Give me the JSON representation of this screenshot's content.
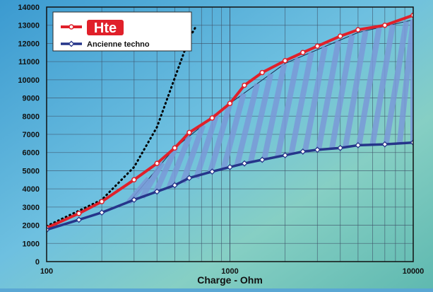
{
  "chart_data": {
    "type": "line",
    "x_scale": "log",
    "xlim": [
      100,
      10000
    ],
    "ylim": [
      0,
      14000
    ],
    "xlabel": "Charge - Ohm",
    "ylabel": "",
    "y_ticks": [
      0,
      1000,
      2000,
      3000,
      4000,
      5000,
      6000,
      7000,
      8000,
      9000,
      10000,
      11000,
      12000,
      13000,
      14000
    ],
    "x_ticks": [
      100,
      1000,
      10000
    ],
    "grid": true,
    "legend_position": "top-left",
    "series": [
      {
        "name": "Hte",
        "color": "#e0202a",
        "marker": "circle",
        "points": [
          [
            100,
            1850
          ],
          [
            150,
            2650
          ],
          [
            200,
            3300
          ],
          [
            300,
            4500
          ],
          [
            400,
            5400
          ],
          [
            500,
            6250
          ],
          [
            600,
            7100
          ],
          [
            800,
            7900
          ],
          [
            1000,
            8700
          ],
          [
            1200,
            9700
          ],
          [
            1500,
            10400
          ],
          [
            2000,
            11050
          ],
          [
            2500,
            11500
          ],
          [
            3000,
            11850
          ],
          [
            4000,
            12400
          ],
          [
            5000,
            12750
          ],
          [
            7000,
            13000
          ],
          [
            10000,
            13550
          ]
        ]
      },
      {
        "name": "Ancienne techno",
        "color": "#26358a",
        "marker": "diamond",
        "points": [
          [
            100,
            1750
          ],
          [
            150,
            2300
          ],
          [
            200,
            2700
          ],
          [
            300,
            3400
          ],
          [
            400,
            3850
          ],
          [
            500,
            4200
          ],
          [
            600,
            4600
          ],
          [
            800,
            4950
          ],
          [
            1000,
            5200
          ],
          [
            1200,
            5400
          ],
          [
            1500,
            5600
          ],
          [
            2000,
            5850
          ],
          [
            2500,
            6050
          ],
          [
            3000,
            6150
          ],
          [
            4000,
            6250
          ],
          [
            5000,
            6400
          ],
          [
            7000,
            6450
          ],
          [
            10000,
            6550
          ]
        ]
      }
    ],
    "dotted_curve": {
      "color": "#000000",
      "points": [
        [
          100,
          1950
        ],
        [
          200,
          3400
        ],
        [
          300,
          5200
        ],
        [
          400,
          7400
        ],
        [
          500,
          10100
        ],
        [
          600,
          12300
        ],
        [
          650,
          12900
        ]
      ]
    },
    "hatched_region": {
      "color": "#7a9ad8",
      "description_points_upper": [
        [
          280,
          3250
        ],
        [
          500,
          6250
        ],
        [
          1000,
          8700
        ],
        [
          2000,
          10900
        ],
        [
          5000,
          12600
        ],
        [
          10000,
          13300
        ]
      ],
      "description_points_lower": [
        [
          280,
          3250
        ],
        [
          500,
          4200
        ],
        [
          1000,
          5200
        ],
        [
          2000,
          5850
        ],
        [
          5000,
          6400
        ],
        [
          10000,
          6550
        ]
      ]
    }
  },
  "legend": {
    "title_badge": "Hte",
    "entries": [
      "Hte",
      "Ancienne techno"
    ]
  }
}
